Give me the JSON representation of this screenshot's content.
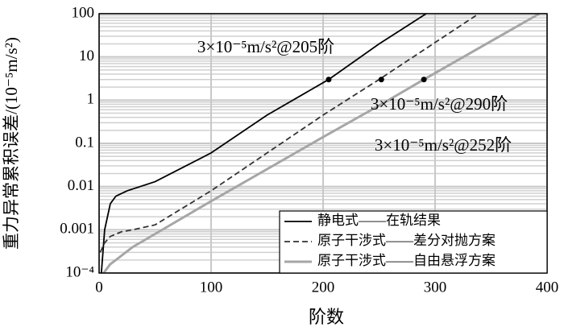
{
  "chart_data": {
    "type": "line",
    "xlabel": "阶数",
    "ylabel": "重力异常累积误差/(10⁻⁵m/s²)",
    "xlim": [
      0,
      400
    ],
    "xticks": [
      0,
      100,
      200,
      300,
      400
    ],
    "ylim": [
      0.0001,
      100
    ],
    "yticks": [
      {
        "value": 0.0001,
        "label": "10⁻⁴"
      },
      0.001,
      0.01,
      0.1,
      1,
      10,
      100
    ],
    "log_y": true,
    "grid": true,
    "legend": "lower right",
    "series": [
      {
        "name": "静电式——在轨结果",
        "color": "#000000",
        "style": "solid",
        "x": [
          2,
          5,
          10,
          15,
          25,
          50,
          100,
          150,
          205,
          250,
          292
        ],
        "values": [
          0.0001,
          0.001,
          0.004,
          0.006,
          0.008,
          0.013,
          0.06,
          0.45,
          3,
          20,
          100
        ]
      },
      {
        "name": "原子干涉式——差分对抛方案",
        "color": "#333333",
        "style": "dashed",
        "x": [
          1,
          5,
          10,
          20,
          30,
          50,
          100,
          150,
          200,
          250,
          339
        ],
        "values": [
          0.0003,
          0.0005,
          0.0007,
          0.0009,
          0.001,
          0.0013,
          0.008,
          0.06,
          0.45,
          3,
          100
        ]
      },
      {
        "name": "原子干涉式——自由悬浮方案",
        "color": "#a6a6a6",
        "style": "thick",
        "x": [
          4,
          10,
          15,
          30,
          50,
          100,
          200,
          252,
          290,
          393
        ],
        "values": [
          0.0001,
          0.00016,
          0.0002,
          0.0004,
          0.0008,
          0.0046,
          0.14,
          0.8,
          3,
          100
        ]
      }
    ],
    "annotations": [
      {
        "text": "3×10⁻⁵m/s²@205阶",
        "x": 205,
        "y": 3
      },
      {
        "text": "3×10⁻⁵m/s²@290阶",
        "x": 290,
        "y": 3
      },
      {
        "text": "3×10⁻⁵m/s²@252阶",
        "x": 252,
        "y": 3
      }
    ]
  }
}
